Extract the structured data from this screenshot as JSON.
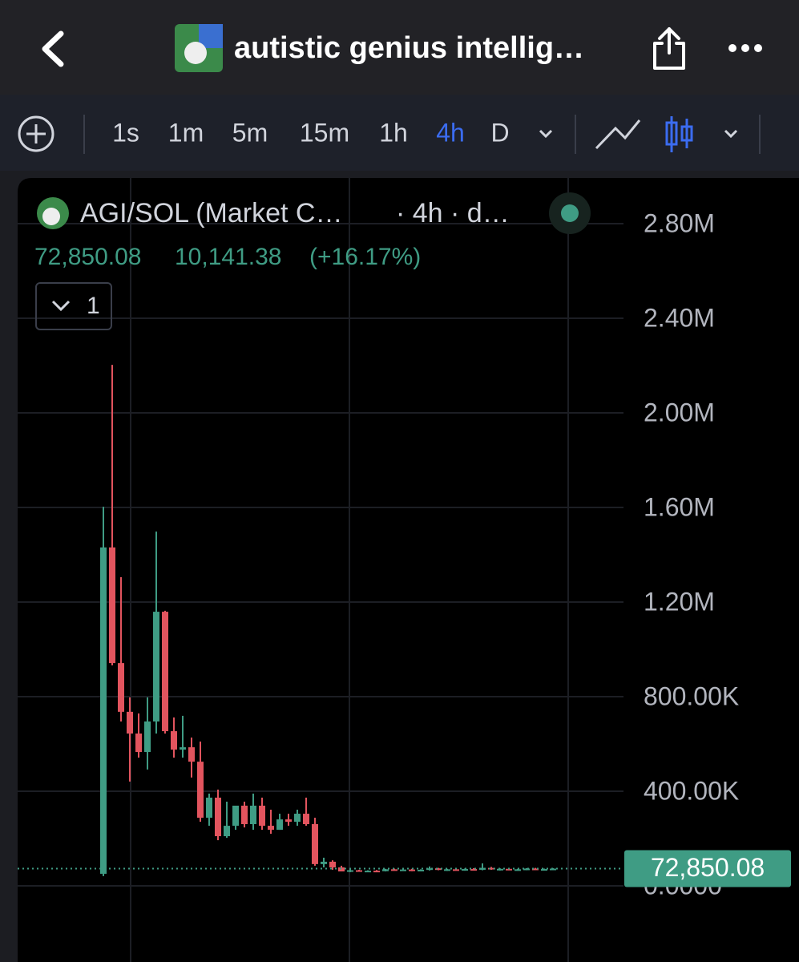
{
  "header": {
    "title": "autistic genius intellig…"
  },
  "toolbar": {
    "intervals": [
      "1s",
      "1m",
      "5m",
      "15m",
      "1h",
      "4h",
      "D"
    ],
    "active": "4h"
  },
  "legend": {
    "symbol": "AGI/SOL (Market C…",
    "meta": "· 4h · d…",
    "price": "72,850.08",
    "change": "10,141.38",
    "change_pct": "(+16.17%)",
    "pane_count": "1"
  },
  "chart_data": {
    "type": "candlestick",
    "up_color": "#3f9c84",
    "down_color": "#e2545e",
    "grid": true,
    "ylim": [
      -322000,
      2983000
    ],
    "yticks": [
      {
        "value": 0,
        "label": "0.0000"
      },
      {
        "value": 400000,
        "label": "400.00K"
      },
      {
        "value": 800000,
        "label": "800.00K"
      },
      {
        "value": 1200000,
        "label": "1.20M"
      },
      {
        "value": 1600000,
        "label": "1.60M"
      },
      {
        "value": 2000000,
        "label": "2.00M"
      },
      {
        "value": 2400000,
        "label": "2.40M"
      },
      {
        "value": 2800000,
        "label": "2.80M"
      }
    ],
    "open": [
      51000,
      1431000,
      942000,
      736000,
      644000,
      566000,
      695000,
      1159000,
      654000,
      576000,
      586000,
      525000,
      288000,
      373000,
      210000,
      254000,
      339000,
      261000,
      339000,
      254000,
      237000,
      281000,
      271000,
      305000,
      261000,
      92000,
      102000,
      78000,
      61000,
      66000,
      63000,
      64000,
      62000,
      70000,
      66000,
      69000,
      64000,
      68000,
      74000,
      68000,
      70000,
      67000,
      71000,
      68000,
      76000,
      70000,
      72000,
      68000,
      70000,
      73000,
      69000,
      71000
    ],
    "high": [
      1603000,
      2203000,
      1305000,
      797000,
      729000,
      797000,
      1498000,
      1163000,
      712000,
      719000,
      627000,
      610000,
      390000,
      407000,
      356000,
      339000,
      356000,
      390000,
      373000,
      322000,
      305000,
      305000,
      322000,
      373000,
      288000,
      119000,
      108000,
      85000,
      70000,
      68000,
      66000,
      67000,
      72000,
      73000,
      71000,
      72000,
      70000,
      82000,
      76000,
      72000,
      74000,
      73000,
      75000,
      95000,
      80000,
      74000,
      76000,
      72000,
      75000,
      76000,
      73000,
      75000
    ],
    "low": [
      41000,
      932000,
      695000,
      441000,
      542000,
      492000,
      644000,
      644000,
      542000,
      542000,
      458000,
      271000,
      254000,
      193000,
      203000,
      237000,
      247000,
      237000,
      237000,
      220000,
      237000,
      254000,
      254000,
      254000,
      85000,
      78000,
      68000,
      61000,
      58000,
      60000,
      59000,
      60000,
      61000,
      64000,
      63000,
      62000,
      62000,
      65000,
      66000,
      63000,
      65000,
      64000,
      66000,
      66000,
      68000,
      65000,
      66000,
      64000,
      66000,
      67000,
      65000,
      68000
    ],
    "close": [
      1431000,
      942000,
      736000,
      644000,
      566000,
      695000,
      1159000,
      654000,
      576000,
      586000,
      525000,
      288000,
      373000,
      210000,
      254000,
      339000,
      261000,
      339000,
      254000,
      237000,
      281000,
      271000,
      305000,
      261000,
      92000,
      102000,
      78000,
      61000,
      66000,
      63000,
      64000,
      62000,
      70000,
      66000,
      69000,
      64000,
      68000,
      74000,
      68000,
      70000,
      67000,
      71000,
      68000,
      76000,
      70000,
      72000,
      68000,
      70000,
      73000,
      69000,
      71000,
      72850.08
    ]
  }
}
